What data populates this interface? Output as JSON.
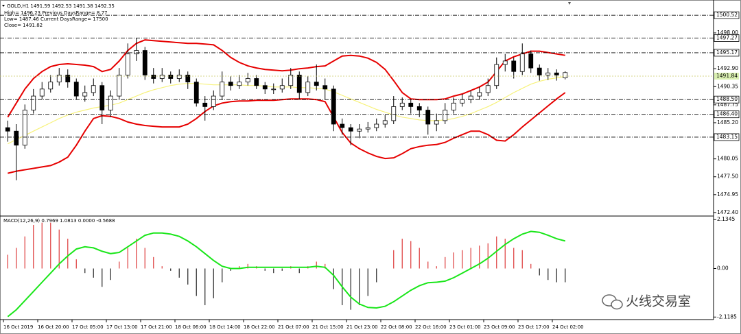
{
  "header": {
    "symbol_line": "GOLD,H1  1491.59 1492.53 1491.38 1492.35",
    "high_line": "High= 1496.23 Previous DaysRange= 8.77",
    "low_line": "Low= 1487.46 Current DaysRange= 17500",
    "close_line": "Close= 1491.82"
  },
  "watermark": "火线交易室",
  "chart_data": [
    {
      "type": "candlestick",
      "categories": [
        "16 Oct 2019",
        null,
        null,
        null,
        "16 Oct 20:00",
        null,
        null,
        null,
        "17 Oct 05:00",
        null,
        null,
        null,
        "17 Oct 13:00",
        null,
        null,
        null,
        "17 Oct 21:00",
        null,
        null,
        null,
        "18 Oct 06:00",
        null,
        null,
        null,
        "18 Oct 14:00",
        null,
        null,
        null,
        "18 Oct 22:00",
        null,
        null,
        null,
        "21 Oct 07:00",
        null,
        null,
        null,
        "21 Oct 15:00",
        null,
        null,
        null,
        "21 Oct 23:00",
        null,
        null,
        null,
        "22 Oct 08:00",
        null,
        null,
        null,
        "22 Oct 16:00",
        null,
        null,
        null,
        "23 Oct 01:00",
        null,
        null,
        null,
        "23 Oct 09:00",
        null,
        null,
        null,
        "23 Oct 17:00",
        null,
        null,
        null,
        "24 Oct 02:00",
        null
      ],
      "open": [
        1484.5,
        1484,
        1482,
        1487,
        1489,
        1490,
        1491,
        1492,
        1491,
        1489,
        1489.5,
        1490.5,
        1487,
        1489,
        1492,
        1495,
        1495.5,
        1492,
        1491.5,
        1492,
        1491.5,
        1492,
        1491,
        1488,
        1487.5,
        1489,
        1491,
        1490.5,
        1491,
        1491.5,
        1490.5,
        1490,
        1490,
        1490.5,
        1492,
        1489.5,
        1491,
        1490.5,
        1490,
        1485,
        1484.5,
        1484,
        1484.3,
        1484.5,
        1485,
        1485.5,
        1487.5,
        1488,
        1487.5,
        1487,
        1485,
        1485.5,
        1487,
        1488,
        1488.5,
        1489,
        1489.5,
        1490.5,
        1493.5,
        1494,
        1492.5,
        1495,
        1493,
        1492,
        1492.3,
        1491.59
      ],
      "high": [
        1485.5,
        1485,
        1487.8,
        1490,
        1491,
        1492,
        1493,
        1492.8,
        1491.5,
        1490.5,
        1491.5,
        1491,
        1489.8,
        1493,
        1496.5,
        1497.3,
        1496,
        1493,
        1493,
        1492.5,
        1492.8,
        1492.5,
        1491.5,
        1489,
        1489.8,
        1492.5,
        1491.8,
        1492,
        1492.3,
        1492,
        1491,
        1490.8,
        1491.5,
        1493,
        1492.5,
        1491.8,
        1493.5,
        1491.5,
        1490.5,
        1485.8,
        1485,
        1485,
        1485.3,
        1485.8,
        1486.3,
        1489,
        1488.8,
        1488.5,
        1488,
        1487.5,
        1486.5,
        1488,
        1488.8,
        1489.3,
        1489.8,
        1490.3,
        1491.5,
        1494.5,
        1495,
        1494.5,
        1496.5,
        1495.5,
        1493.5,
        1493,
        1492.8,
        1492.53
      ],
      "low": [
        1482.5,
        1477,
        1481.5,
        1486.5,
        1488.5,
        1489.5,
        1490.5,
        1490.2,
        1488.5,
        1488.2,
        1489,
        1485,
        1486,
        1488.5,
        1491.5,
        1494,
        1491.3,
        1490.8,
        1491,
        1490.8,
        1491,
        1490,
        1487.5,
        1485.5,
        1487,
        1488.5,
        1489.8,
        1490,
        1490.5,
        1490,
        1489.3,
        1489.3,
        1489.5,
        1490,
        1488.5,
        1489,
        1489.8,
        1488.5,
        1484,
        1483.5,
        1482,
        1483,
        1483.8,
        1484,
        1484.5,
        1485,
        1487,
        1486.5,
        1486,
        1483.5,
        1484,
        1485,
        1486.5,
        1487.5,
        1488,
        1488.5,
        1489,
        1490,
        1492.5,
        1491.5,
        1492,
        1492.3,
        1491.2,
        1491.3,
        1491.2,
        1491.38
      ],
      "close": [
        1484,
        1482,
        1487,
        1489,
        1490,
        1491,
        1492,
        1491,
        1489,
        1489.5,
        1490.5,
        1487,
        1489,
        1492,
        1495,
        1495.5,
        1492,
        1491.5,
        1492,
        1491.5,
        1492,
        1491,
        1488,
        1487.5,
        1489,
        1491,
        1490.5,
        1491,
        1491.5,
        1490.5,
        1490,
        1490,
        1490.5,
        1492,
        1489.5,
        1491,
        1490.5,
        1490,
        1485,
        1484.5,
        1484,
        1484.3,
        1484.5,
        1485,
        1485.5,
        1487.5,
        1488,
        1487.5,
        1487,
        1485,
        1485.5,
        1487,
        1488,
        1488.5,
        1489,
        1489.5,
        1490.5,
        1493.5,
        1494,
        1492.5,
        1495,
        1493,
        1492,
        1492.3,
        1492,
        1492.35
      ],
      "up_color": "#ffffff",
      "down_color": "#000000",
      "lines": [
        {
          "color": "#f7f27a",
          "values": [
            1482.2,
            1482.8,
            1483.4,
            1484,
            1484.6,
            1485.2,
            1485.8,
            1486.3,
            1486.7,
            1487,
            1487.3,
            1487.5,
            1487.7,
            1488,
            1488.5,
            1489,
            1489.5,
            1489.9,
            1490.2,
            1490.5,
            1490.7,
            1490.8,
            1490.8,
            1490.7,
            1490.6,
            1490.6,
            1490.6,
            1490.6,
            1490.5,
            1490.5,
            1490.4,
            1490.3,
            1490.3,
            1490.3,
            1490.2,
            1490.2,
            1490.1,
            1490,
            1489.6,
            1489.1,
            1488.6,
            1488.1,
            1487.6,
            1487.1,
            1486.7,
            1486.3,
            1486,
            1485.8,
            1485.6,
            1485.5,
            1485.5,
            1485.6,
            1485.8,
            1486.1,
            1486.5,
            1487,
            1487.5,
            1488.1,
            1488.8,
            1489.5,
            1490.1,
            1490.7,
            1491.1,
            1491.4,
            1491.6,
            1491.8
          ]
        },
        {
          "color": "#e60000",
          "values": [
            1486,
            1488,
            1490,
            1491.5,
            1492.5,
            1493.2,
            1493.5,
            1493.6,
            1493.5,
            1493.4,
            1493.2,
            1492.5,
            1492.8,
            1494,
            1495.5,
            1496.5,
            1497,
            1496.9,
            1496.8,
            1496.7,
            1496.6,
            1496.5,
            1496.5,
            1496.4,
            1496.3,
            1495.5,
            1494.5,
            1493.8,
            1493.3,
            1493,
            1492.8,
            1492.7,
            1492.6,
            1492.7,
            1492.9,
            1493,
            1493.2,
            1493.3,
            1494,
            1494.7,
            1494.8,
            1494.7,
            1494.4,
            1493.8,
            1492.8,
            1491.2,
            1489.5,
            1488.6,
            1488.5,
            1488.5,
            1488.5,
            1488.6,
            1489,
            1489.3,
            1489.8,
            1490.3,
            1491,
            1492.5,
            1494,
            1494.6,
            1495,
            1495.4,
            1495.4,
            1495.2,
            1495,
            1494.8
          ]
        },
        {
          "color": "#e60000",
          "values": [
            1478,
            1478.3,
            1478.5,
            1478.7,
            1478.9,
            1479.1,
            1479.6,
            1480.3,
            1482,
            1484,
            1485.8,
            1486.2,
            1486.1,
            1485.8,
            1485.3,
            1485,
            1484.8,
            1484.7,
            1484.6,
            1484.6,
            1484.6,
            1485,
            1485.8,
            1486.8,
            1487.6,
            1488,
            1488.2,
            1488.3,
            1488.3,
            1488.4,
            1488.4,
            1488.4,
            1488.5,
            1488.6,
            1488.6,
            1488.6,
            1488.5,
            1488.2,
            1486,
            1483.8,
            1482.3,
            1481.5,
            1480.9,
            1480.4,
            1480.1,
            1480.2,
            1480.8,
            1481.5,
            1481.8,
            1482,
            1482.1,
            1482.4,
            1483,
            1483.5,
            1484,
            1484,
            1483.5,
            1482.7,
            1482.6,
            1483.5,
            1484.6,
            1485.6,
            1486.6,
            1487.6,
            1488.6,
            1489.5
          ]
        }
      ],
      "ylim": [
        1472.1,
        1502.2
      ],
      "yticks": [
        {
          "value": 1498,
          "label": "1498.00"
        },
        {
          "value": 1492.9,
          "label": "1492.90"
        },
        1490.35,
        1487.75,
        {
          "value": 1485.2,
          "label": "1485.20"
        },
        1480.05,
        {
          "value": 1477.5,
          "label": "1477.50"
        },
        1474.95,
        {
          "value": 1472.4,
          "label": "1472.40"
        }
      ],
      "levels": [
        1500.52,
        1497.27,
        1495.17,
        {
          "value": 1488.5,
          "label": "1488.50"
        },
        {
          "value": 1486.4,
          "label": "1486.40"
        },
        1483.15
      ],
      "level_color": "#000000",
      "current_price": 1491.84,
      "current_color": "#d9efb0"
    },
    {
      "type": "macd",
      "title": "MACD(12,26,9) 0.7969 1.0813 0.0000 -0.5688",
      "values": [
        0.6,
        0.9,
        1.4,
        1.9,
        2.0,
        2.0,
        1.7,
        1.3,
        0.4,
        -0.2,
        -0.4,
        -0.8,
        -0.5,
        0.3,
        0.9,
        1.3,
        0.9,
        0.5,
        0.1,
        -0.1,
        -0.4,
        -0.7,
        -1.2,
        -1.6,
        -1.3,
        -0.6,
        -0.1,
        0.1,
        0.2,
        0.1,
        -0.1,
        -0.2,
        -0.1,
        0.1,
        -0.2,
        0.1,
        0.3,
        0.2,
        -0.9,
        -1.6,
        -1.8,
        -1.6,
        -1.2,
        -0.6,
        0.0,
        0.8,
        1.3,
        1.2,
        0.9,
        0.3,
        0.1,
        0.5,
        0.7,
        0.8,
        0.9,
        1.0,
        1.1,
        1.4,
        1.3,
        0.9,
        0.8,
        0.2,
        -0.3,
        -0.5,
        -0.6,
        -0.6
      ],
      "up_color": "#e04848",
      "down_color": "#333333",
      "lines": [
        {
          "color": "#19e619",
          "values": [
            -2.1,
            -1.8,
            -1.4,
            -1.0,
            -0.6,
            -0.2,
            0.2,
            0.55,
            0.85,
            0.95,
            0.9,
            0.75,
            0.65,
            0.7,
            0.95,
            1.2,
            1.45,
            1.55,
            1.55,
            1.5,
            1.4,
            1.2,
            0.95,
            0.65,
            0.35,
            0.1,
            0.0,
            0.0,
            0.05,
            0.05,
            0.05,
            0.05,
            0.05,
            0.05,
            0.05,
            0.05,
            0.1,
            0.05,
            -0.3,
            -0.8,
            -1.25,
            -1.55,
            -1.7,
            -1.72,
            -1.65,
            -1.45,
            -1.2,
            -0.95,
            -0.75,
            -0.62,
            -0.6,
            -0.55,
            -0.4,
            -0.2,
            0.0,
            0.2,
            0.45,
            0.75,
            1.05,
            1.3,
            1.5,
            1.62,
            1.58,
            1.45,
            1.3,
            1.2
          ]
        }
      ],
      "ylim": [
        -2.2,
        2.2
      ],
      "yticks": [
        2.1345,
        {
          "value": 0,
          "label": "0.00"
        },
        -2.1185
      ]
    }
  ]
}
